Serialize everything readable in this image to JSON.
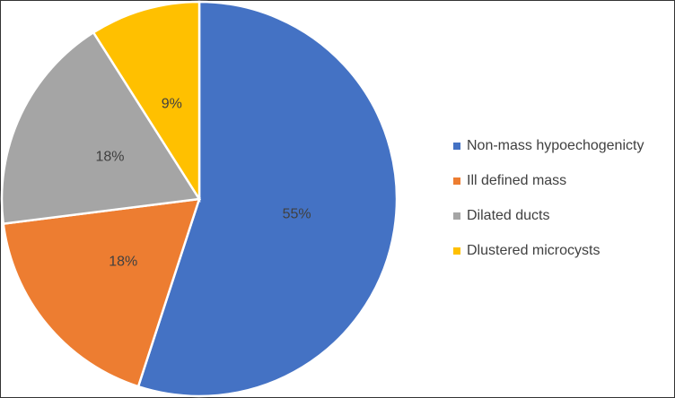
{
  "chart_data": {
    "type": "pie",
    "categories": [
      "Non-mass hypoechogenicty",
      "Ill defined mass",
      "Dilated ducts",
      "Dlustered microcysts"
    ],
    "values": [
      55,
      18,
      18,
      9
    ],
    "value_labels": [
      "55%",
      "18%",
      "18%",
      "9%"
    ],
    "colors": [
      "#4472c4",
      "#ed7d31",
      "#a5a5a5",
      "#ffc000"
    ],
    "legend": "right"
  }
}
